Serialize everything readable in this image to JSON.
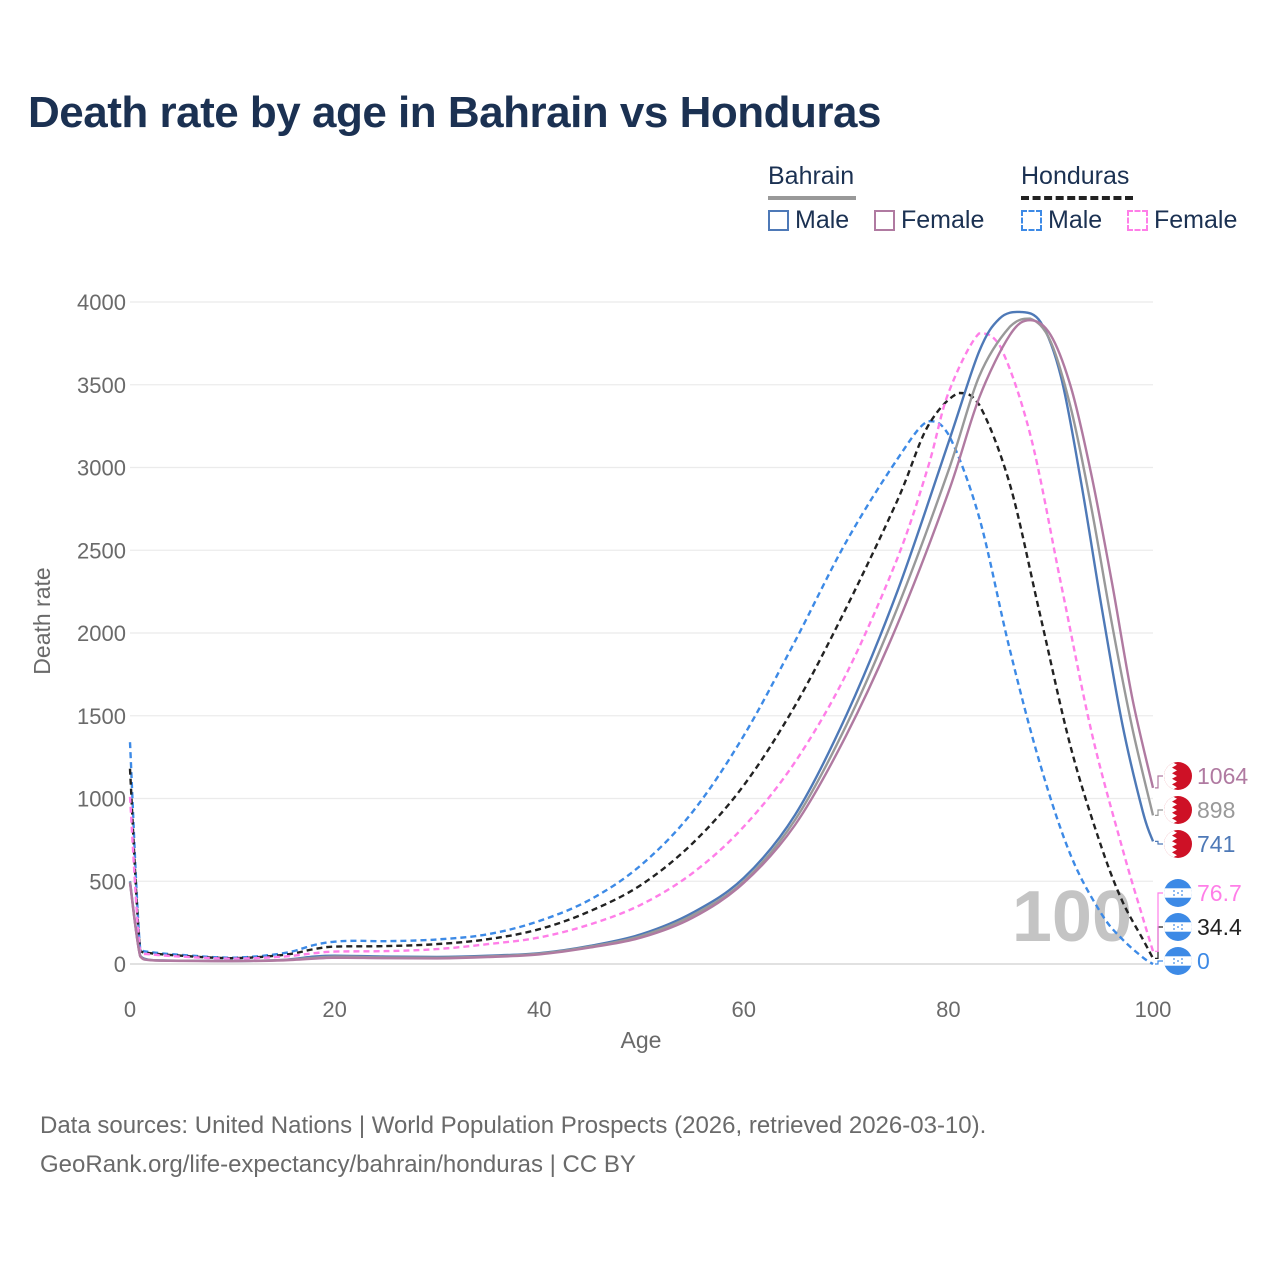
{
  "title": "Death rate by age in Bahrain vs Honduras",
  "legend": {
    "groups": [
      {
        "country": "Bahrain",
        "line_color": "#999999",
        "line_style": "solid",
        "items": [
          {
            "label": "Male",
            "color": "#4e79b7",
            "style": "solid"
          },
          {
            "label": "Female",
            "color": "#b07aa1",
            "style": "solid"
          }
        ]
      },
      {
        "country": "Honduras",
        "line_color": "#222222",
        "line_style": "dashed",
        "items": [
          {
            "label": "Male",
            "color": "#3d8ae6",
            "style": "dashed"
          },
          {
            "label": "Female",
            "color": "#ff7ee8",
            "style": "dashed"
          }
        ]
      }
    ]
  },
  "chart_data": {
    "type": "line",
    "title": "Death rate by age in Bahrain vs Honduras",
    "xlabel": "Age",
    "ylabel": "Death rate",
    "xlim": [
      0,
      100
    ],
    "ylim": [
      0,
      4000
    ],
    "x_ticks": [
      0,
      20,
      40,
      60,
      80,
      100
    ],
    "y_ticks": [
      0,
      500,
      1000,
      1500,
      2000,
      2500,
      3000,
      3500,
      4000
    ],
    "grid": true,
    "watermark": "100",
    "series": [
      {
        "name": "Honduras Male",
        "country": "Honduras",
        "sex": "Male",
        "color": "#3d8ae6",
        "dash": true,
        "end_value": "0",
        "flag": "honduras",
        "points": [
          [
            0,
            1340
          ],
          [
            1,
            90
          ],
          [
            2,
            72
          ],
          [
            5,
            55
          ],
          [
            10,
            38
          ],
          [
            15,
            65
          ],
          [
            18,
            115
          ],
          [
            20,
            135
          ],
          [
            22,
            140
          ],
          [
            25,
            138
          ],
          [
            30,
            148
          ],
          [
            35,
            180
          ],
          [
            40,
            260
          ],
          [
            45,
            390
          ],
          [
            50,
            600
          ],
          [
            55,
            920
          ],
          [
            60,
            1380
          ],
          [
            65,
            1950
          ],
          [
            70,
            2550
          ],
          [
            75,
            3050
          ],
          [
            78,
            3280
          ],
          [
            80,
            3200
          ],
          [
            83,
            2700
          ],
          [
            86,
            1900
          ],
          [
            89,
            1200
          ],
          [
            92,
            650
          ],
          [
            95,
            300
          ],
          [
            97,
            150
          ],
          [
            99,
            40
          ],
          [
            100,
            0
          ]
        ]
      },
      {
        "name": "Honduras Total",
        "country": "Honduras",
        "sex": "Total",
        "color": "#222222",
        "dash": true,
        "end_value": "34.4",
        "flag": "honduras",
        "points": [
          [
            0,
            1180
          ],
          [
            1,
            80
          ],
          [
            2,
            65
          ],
          [
            5,
            50
          ],
          [
            10,
            35
          ],
          [
            15,
            55
          ],
          [
            18,
            90
          ],
          [
            20,
            105
          ],
          [
            25,
            108
          ],
          [
            30,
            120
          ],
          [
            35,
            150
          ],
          [
            40,
            210
          ],
          [
            45,
            320
          ],
          [
            50,
            480
          ],
          [
            55,
            730
          ],
          [
            60,
            1080
          ],
          [
            65,
            1560
          ],
          [
            70,
            2150
          ],
          [
            75,
            2800
          ],
          [
            78,
            3250
          ],
          [
            81,
            3450
          ],
          [
            83,
            3380
          ],
          [
            86,
            2900
          ],
          [
            89,
            2100
          ],
          [
            92,
            1300
          ],
          [
            95,
            700
          ],
          [
            97,
            380
          ],
          [
            99,
            150
          ],
          [
            100,
            34
          ]
        ]
      },
      {
        "name": "Honduras Female",
        "country": "Honduras",
        "sex": "Female",
        "color": "#ff7ee8",
        "dash": true,
        "end_value": "76.7",
        "flag": "honduras",
        "points": [
          [
            0,
            1010
          ],
          [
            1,
            70
          ],
          [
            2,
            58
          ],
          [
            5,
            45
          ],
          [
            10,
            32
          ],
          [
            15,
            45
          ],
          [
            18,
            65
          ],
          [
            20,
            75
          ],
          [
            25,
            78
          ],
          [
            30,
            90
          ],
          [
            35,
            120
          ],
          [
            40,
            160
          ],
          [
            45,
            240
          ],
          [
            50,
            360
          ],
          [
            55,
            550
          ],
          [
            60,
            830
          ],
          [
            65,
            1220
          ],
          [
            70,
            1750
          ],
          [
            75,
            2450
          ],
          [
            78,
            3000
          ],
          [
            80,
            3450
          ],
          [
            83,
            3810
          ],
          [
            85,
            3740
          ],
          [
            88,
            3200
          ],
          [
            91,
            2300
          ],
          [
            94,
            1400
          ],
          [
            97,
            700
          ],
          [
            99,
            280
          ],
          [
            100,
            77
          ]
        ]
      },
      {
        "name": "Bahrain Male",
        "country": "Bahrain",
        "sex": "Male",
        "color": "#4e79b7",
        "dash": false,
        "end_value": "741",
        "flag": "bahrain",
        "points": [
          [
            0,
            500
          ],
          [
            1,
            50
          ],
          [
            2,
            25
          ],
          [
            3,
            22
          ],
          [
            5,
            20
          ],
          [
            10,
            18
          ],
          [
            15,
            25
          ],
          [
            18,
            45
          ],
          [
            20,
            50
          ],
          [
            25,
            45
          ],
          [
            30,
            42
          ],
          [
            35,
            50
          ],
          [
            40,
            65
          ],
          [
            45,
            110
          ],
          [
            50,
            180
          ],
          [
            55,
            310
          ],
          [
            60,
            520
          ],
          [
            65,
            900
          ],
          [
            70,
            1500
          ],
          [
            75,
            2250
          ],
          [
            80,
            3150
          ],
          [
            83,
            3700
          ],
          [
            85,
            3900
          ],
          [
            87,
            3940
          ],
          [
            89,
            3880
          ],
          [
            91,
            3550
          ],
          [
            93,
            2900
          ],
          [
            95,
            2150
          ],
          [
            97,
            1450
          ],
          [
            99,
            920
          ],
          [
            100,
            741
          ]
        ]
      },
      {
        "name": "Bahrain Total",
        "country": "Bahrain",
        "sex": "Total",
        "color": "#999999",
        "dash": false,
        "end_value": "898",
        "flag": "bahrain",
        "points": [
          [
            0,
            495
          ],
          [
            1,
            48
          ],
          [
            2,
            24
          ],
          [
            5,
            20
          ],
          [
            10,
            18
          ],
          [
            15,
            24
          ],
          [
            20,
            45
          ],
          [
            25,
            40
          ],
          [
            30,
            38
          ],
          [
            35,
            46
          ],
          [
            40,
            62
          ],
          [
            45,
            105
          ],
          [
            50,
            170
          ],
          [
            55,
            295
          ],
          [
            60,
            500
          ],
          [
            65,
            870
          ],
          [
            70,
            1440
          ],
          [
            75,
            2150
          ],
          [
            80,
            2980
          ],
          [
            83,
            3550
          ],
          [
            86,
            3850
          ],
          [
            88,
            3900
          ],
          [
            90,
            3760
          ],
          [
            92,
            3350
          ],
          [
            94,
            2750
          ],
          [
            96,
            2050
          ],
          [
            98,
            1420
          ],
          [
            100,
            898
          ]
        ]
      },
      {
        "name": "Bahrain Female",
        "country": "Bahrain",
        "sex": "Female",
        "color": "#b07aa1",
        "dash": false,
        "end_value": "1064",
        "flag": "bahrain",
        "points": [
          [
            0,
            490
          ],
          [
            1,
            46
          ],
          [
            2,
            23
          ],
          [
            5,
            19
          ],
          [
            10,
            17
          ],
          [
            15,
            22
          ],
          [
            20,
            38
          ],
          [
            25,
            35
          ],
          [
            30,
            34
          ],
          [
            35,
            42
          ],
          [
            40,
            58
          ],
          [
            45,
            100
          ],
          [
            50,
            160
          ],
          [
            55,
            280
          ],
          [
            60,
            490
          ],
          [
            65,
            840
          ],
          [
            70,
            1380
          ],
          [
            75,
            2050
          ],
          [
            80,
            2850
          ],
          [
            83,
            3420
          ],
          [
            86,
            3800
          ],
          [
            88,
            3890
          ],
          [
            90,
            3800
          ],
          [
            92,
            3480
          ],
          [
            94,
            2950
          ],
          [
            96,
            2300
          ],
          [
            98,
            1600
          ],
          [
            100,
            1064
          ]
        ]
      }
    ]
  },
  "source": {
    "line1": "Data sources: United Nations | World Population Prospects (2026, retrieved 2026-03-10).",
    "line2": "GeoRank.org/life-expectancy/bahrain/honduras | CC BY"
  }
}
